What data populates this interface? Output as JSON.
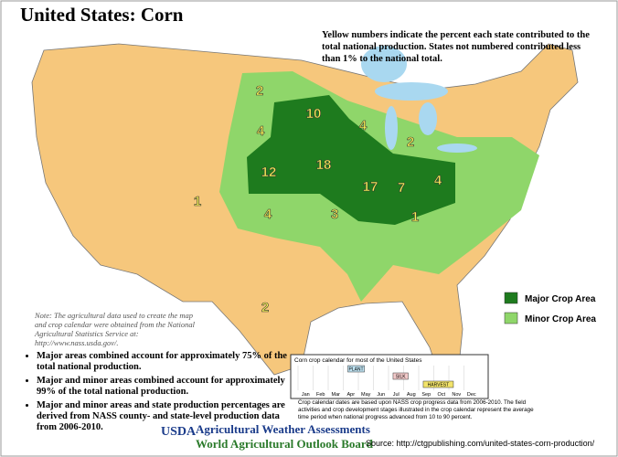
{
  "title": "United States: Corn",
  "description": "Yellow numbers indicate the percent each state contributed to the total national production.  States not numbered contributed less than 1% to the national total.",
  "state_percentages": [
    2,
    10,
    4,
    2,
    4,
    12,
    18,
    17,
    7,
    4,
    1,
    4,
    3,
    1,
    2
  ],
  "legend": [
    {
      "label": "Major Crop Area",
      "color": "#1e7b1e"
    },
    {
      "label": "Minor Crop Area",
      "color": "#8fd66a"
    }
  ],
  "note": "Note:  The agricultural data used to create the map and crop calendar were obtained from the National Agricultural Statistics Service at: http://www.nass.usda.gov/.",
  "bullets": [
    "Major areas combined account for approximately 75% of the total national production.",
    "Major and minor areas combined account for approximately 99% of the total national production.",
    "Major and minor areas and state production percentages are derived from NASS county- and state-level production data from 2006-2010."
  ],
  "calendar": {
    "title": "Corn crop calendar for most of the United States",
    "stages": [
      {
        "label": "PLANT",
        "color": "#bfe3f2"
      },
      {
        "label": "SILK",
        "color": "#f2c9c9"
      },
      {
        "label": "HARVEST",
        "color": "#f2e36a"
      }
    ],
    "months": [
      "Jan",
      "Feb",
      "Mar",
      "Apr",
      "May",
      "Jun",
      "Jul",
      "Aug",
      "Sep",
      "Oct",
      "Nov",
      "Dec"
    ],
    "caption": "Crop calendar dates are based upon NASS crop progress data from 2006-2010.  The field activities and crop development stages illustrated in the crop calendar represent the average time period when national progress advanced from 10 to 90 percent."
  },
  "footer": {
    "agency": "USDA",
    "line1": "Agricultural Weather Assessments",
    "line2": "World Agricultural Outlook Board",
    "source": "Source: http://ctgpublishing.com/united-states-corn-production/"
  }
}
